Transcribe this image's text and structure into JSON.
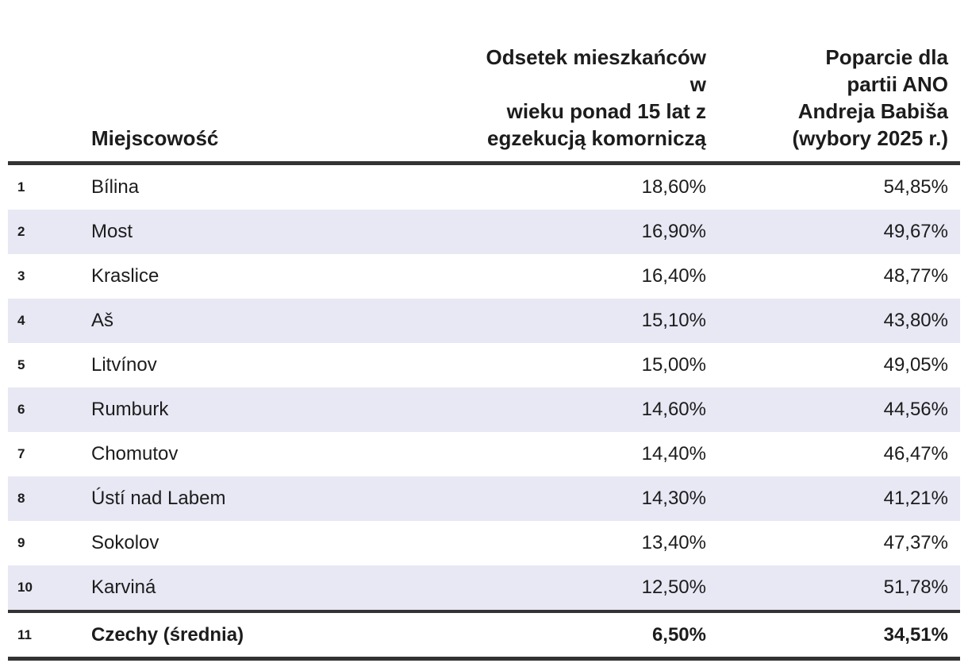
{
  "colors": {
    "stripe": "#e7e8f4",
    "rule": "#333333",
    "text": "#1c1c1c",
    "background": "#ffffff"
  },
  "table": {
    "columns": [
      {
        "label": ""
      },
      {
        "label": "Miejscowość"
      },
      {
        "label": "Odsetek mieszkańców w wieku ponad 15 lat z egzekucją komorniczą",
        "lines": [
          "Odsetek mieszkańców w",
          "wieku ponad 15 lat z",
          "egzekucją komorniczą"
        ]
      },
      {
        "label": "Poparcie dla partii ANO Andreja Babiša (wybory 2025 r.)",
        "lines": [
          "Poparcie dla",
          "partii ANO",
          "Andreja Babiša",
          "(wybory 2025 r.)"
        ]
      }
    ],
    "rows": [
      {
        "rank": "1",
        "place": "Bílina",
        "debt": "18,60%",
        "ano": "54,85%",
        "is_total": false
      },
      {
        "rank": "2",
        "place": "Most",
        "debt": "16,90%",
        "ano": "49,67%",
        "is_total": false
      },
      {
        "rank": "3",
        "place": "Kraslice",
        "debt": "16,40%",
        "ano": "48,77%",
        "is_total": false
      },
      {
        "rank": "4",
        "place": "Aš",
        "debt": "15,10%",
        "ano": "43,80%",
        "is_total": false
      },
      {
        "rank": "5",
        "place": "Litvínov",
        "debt": "15,00%",
        "ano": "49,05%",
        "is_total": false
      },
      {
        "rank": "6",
        "place": "Rumburk",
        "debt": "14,60%",
        "ano": "44,56%",
        "is_total": false
      },
      {
        "rank": "7",
        "place": "Chomutov",
        "debt": "14,40%",
        "ano": "46,47%",
        "is_total": false
      },
      {
        "rank": "8",
        "place": "Ústí nad Labem",
        "debt": "14,30%",
        "ano": "41,21%",
        "is_total": false
      },
      {
        "rank": "9",
        "place": "Sokolov",
        "debt": "13,40%",
        "ano": "47,37%",
        "is_total": false
      },
      {
        "rank": "10",
        "place": "Karviná",
        "debt": "12,50%",
        "ano": "51,78%",
        "is_total": false
      },
      {
        "rank": "11",
        "place": "Czechy (średnia)",
        "debt": "6,50%",
        "ano": "34,51%",
        "is_total": true
      }
    ]
  },
  "chart_data": {
    "type": "table",
    "title": "",
    "columns": [
      "#",
      "Miejscowość",
      "Odsetek mieszkańców w wieku ponad 15 lat z egzekucją komorniczą",
      "Poparcie dla partii ANO Andreja Babiša (wybory 2025 r.)"
    ],
    "categories": [
      "Bílina",
      "Most",
      "Kraslice",
      "Aš",
      "Litvínov",
      "Rumburk",
      "Chomutov",
      "Ústí nad Labem",
      "Sokolov",
      "Karviná",
      "Czechy (średnia)"
    ],
    "series": [
      {
        "name": "Odsetek mieszkańców w wieku ponad 15 lat z egzekucją komorniczą (%)",
        "values": [
          18.6,
          16.9,
          16.4,
          15.1,
          15.0,
          14.6,
          14.4,
          14.3,
          13.4,
          12.5,
          6.5
        ]
      },
      {
        "name": "Poparcie dla partii ANO Andreja Babiša, wybory 2025 r. (%)",
        "values": [
          54.85,
          49.67,
          48.77,
          43.8,
          49.05,
          44.56,
          46.47,
          41.21,
          47.37,
          51.78,
          34.51
        ]
      }
    ],
    "layout_hints": {
      "zebra_stripes": true,
      "summary_row_bold": true,
      "value_alignment": "right",
      "decimal_separator": ","
    }
  }
}
